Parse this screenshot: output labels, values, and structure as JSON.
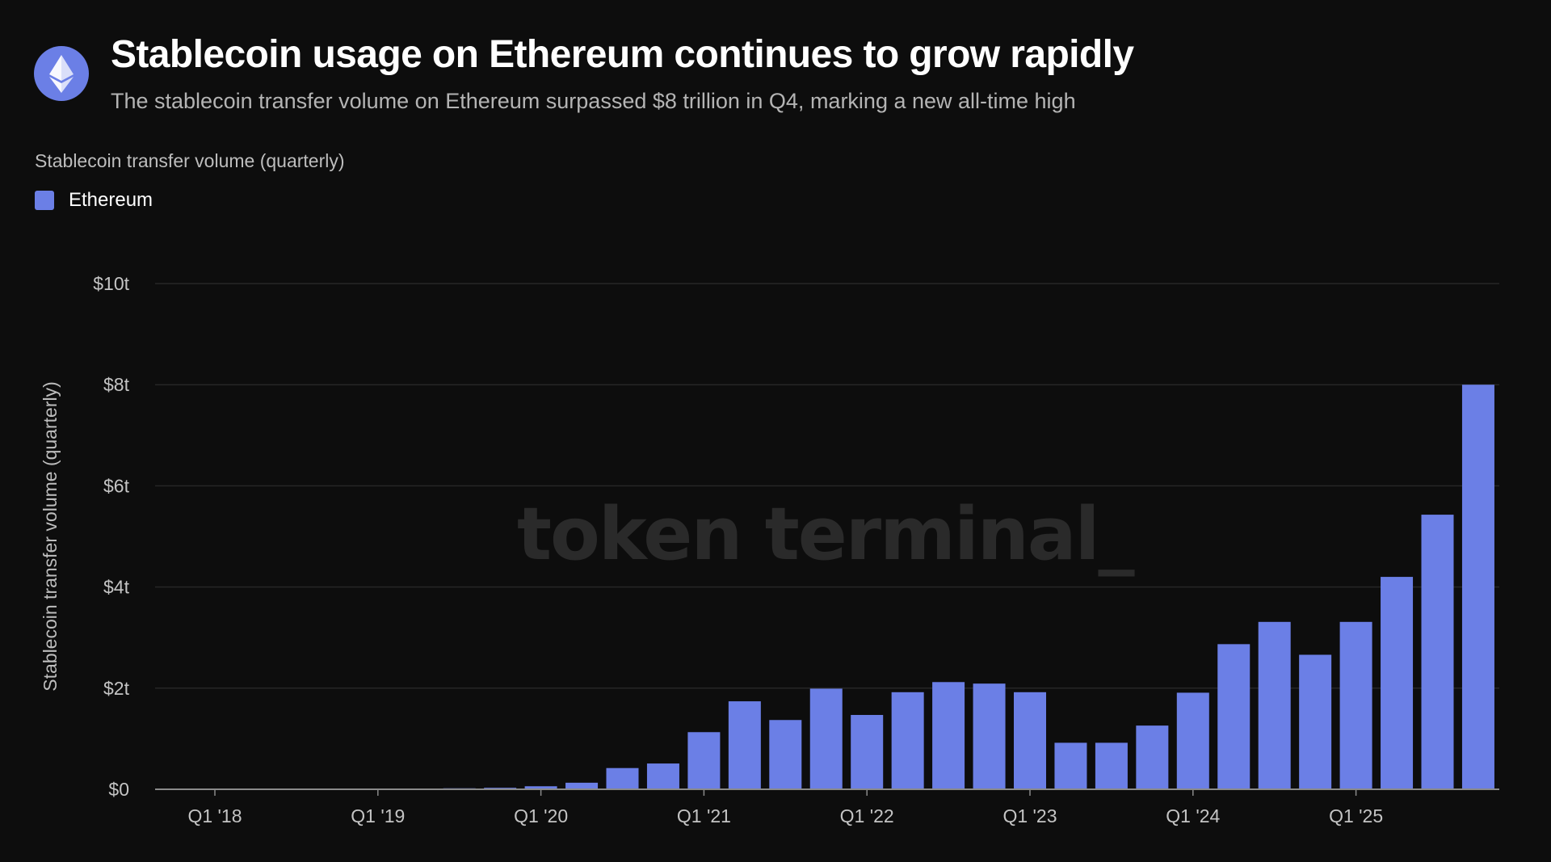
{
  "header": {
    "logo_icon": "ethereum-logo-icon",
    "title": "Stablecoin usage on Ethereum continues to grow rapidly",
    "subtitle": "The stablecoin transfer volume on Ethereum surpassed $8 trillion in Q4, marking a new all-time high"
  },
  "metric_label": "Stablecoin transfer volume (quarterly)",
  "watermark": "token terminal_",
  "colors": {
    "background": "#0d0d0d",
    "bar": "#6b7fe6",
    "grid": "#262626",
    "watermark": "#2a2a2a"
  },
  "chart_data": {
    "type": "bar",
    "ylabel": "Stablecoin transfer volume (quarterly)",
    "ylim": [
      0,
      10
    ],
    "y_unit": "trillion USD",
    "y_ticks": [
      {
        "value": 0,
        "label": "$0"
      },
      {
        "value": 2,
        "label": "$2t"
      },
      {
        "value": 4,
        "label": "$4t"
      },
      {
        "value": 6,
        "label": "$6t"
      },
      {
        "value": 8,
        "label": "$8t"
      },
      {
        "value": 10,
        "label": "$10t"
      }
    ],
    "x_ticks": [
      {
        "category": "Q1 2018",
        "label": "Q1 '18"
      },
      {
        "category": "Q1 2019",
        "label": "Q1 '19"
      },
      {
        "category": "Q1 2020",
        "label": "Q1 '20"
      },
      {
        "category": "Q1 2021",
        "label": "Q1 '21"
      },
      {
        "category": "Q1 2022",
        "label": "Q1 '22"
      },
      {
        "category": "Q1 2023",
        "label": "Q1 '23"
      },
      {
        "category": "Q1 2024",
        "label": "Q1 '24"
      },
      {
        "category": "Q1 2025",
        "label": "Q1 '25"
      }
    ],
    "grid": true,
    "legend_position": "top-left",
    "series": [
      {
        "name": "Ethereum",
        "color": "#6b7fe6",
        "categories": [
          "Q1 2018",
          "Q2 2018",
          "Q3 2018",
          "Q4 2018",
          "Q1 2019",
          "Q2 2019",
          "Q3 2019",
          "Q4 2019",
          "Q1 2020",
          "Q2 2020",
          "Q3 2020",
          "Q4 2020",
          "Q1 2021",
          "Q2 2021",
          "Q3 2021",
          "Q4 2021",
          "Q1 2022",
          "Q2 2022",
          "Q3 2022",
          "Q4 2022",
          "Q1 2023",
          "Q2 2023",
          "Q3 2023",
          "Q4 2023",
          "Q1 2024",
          "Q2 2024",
          "Q3 2024",
          "Q4 2024",
          "Q1 2025",
          "Q2 2025",
          "Q3 2025",
          "Q4 2025"
        ],
        "values": [
          0,
          0,
          0,
          0,
          0,
          0.01,
          0.02,
          0.03,
          0.06,
          0.13,
          0.42,
          0.51,
          1.13,
          1.74,
          1.37,
          1.99,
          1.47,
          1.92,
          2.12,
          2.09,
          1.92,
          0.92,
          0.92,
          1.26,
          1.91,
          2.87,
          3.31,
          2.66,
          3.31,
          4.2,
          5.43,
          8.0
        ]
      }
    ]
  }
}
